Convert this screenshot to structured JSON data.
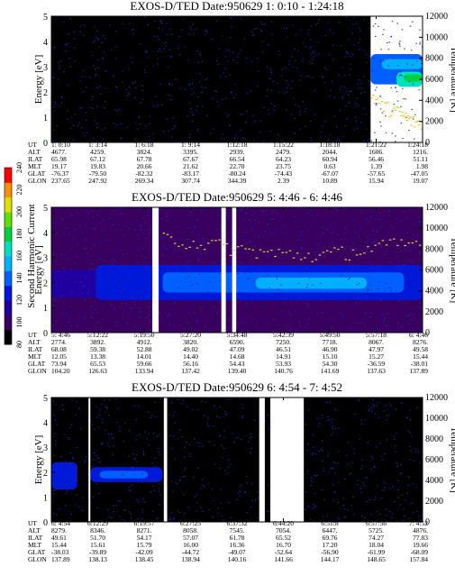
{
  "chart_data": [
    {
      "type": "heatmap",
      "title": "EXOS-D/TED   Date:950629   1: 0:10 - 1:24:18",
      "ylabel": "Energy [eV]",
      "y2label": "Temperature [K]",
      "ylim": [
        0,
        5
      ],
      "y2lim": [
        0,
        12000
      ],
      "yticks": [
        "0",
        "1",
        "2",
        "3",
        "4",
        "5"
      ],
      "y2ticks": [
        "0",
        "2000",
        "4000",
        "6000",
        "8000",
        "10000",
        "12000"
      ],
      "xlim": [
        0,
        1
      ],
      "gaps": [],
      "intensity_bands": [
        {
          "x": [
            0.0,
            0.86
          ],
          "e": [
            0.0,
            5.0
          ],
          "level": 90
        },
        {
          "x": [
            0.86,
            1.0
          ],
          "e": [
            2.3,
            3.5
          ],
          "level": 135
        },
        {
          "x": [
            0.89,
            1.0
          ],
          "e": [
            2.9,
            3.3
          ],
          "level": 150
        },
        {
          "x": [
            0.93,
            1.0
          ],
          "e": [
            2.2,
            2.8
          ],
          "level": 160
        },
        {
          "x": [
            0.95,
            1.0
          ],
          "e": [
            2.4,
            2.7
          ],
          "level": 185
        }
      ],
      "temperature_x": [
        0.86,
        0.9,
        0.94,
        0.97,
        1.0
      ],
      "temperature_k": [
        4500,
        3300,
        2700,
        2000,
        1800
      ],
      "ephemeris": {
        "labels": [
          "UT",
          "ALT",
          "ILAT",
          "MLT",
          "GLAT",
          "GLON"
        ],
        "columns": [
          [
            "1: 0:10",
            "4677.",
            "65.98",
            "19.17",
            "-76.37",
            "237.65"
          ],
          [
            "1: 3:14",
            "4259.",
            "67.12",
            "19.83",
            "-79.50",
            "247.92"
          ],
          [
            "1: 6:18",
            "3824.",
            "67.78",
            "20.66",
            "-82.32",
            "269.34"
          ],
          [
            "1: 9:14",
            "3395.",
            "67.67",
            "21.62",
            "-83.17",
            "307.74"
          ],
          [
            "1:12:18",
            "2939.",
            "66.54",
            "22.70",
            "-80.24",
            "344.39"
          ],
          [
            "1:15:22",
            "2479.",
            "64.23",
            "23.75",
            "-74.43",
            "2.39"
          ],
          [
            "1:18:18",
            "2044.",
            "60.94",
            "0.63",
            "-67.07",
            "10.89"
          ],
          [
            "1:21:22",
            "1606.",
            "56.46",
            "1.39",
            "-57.65",
            "15.94"
          ],
          [
            "1:24:18",
            "1216.",
            "51.11",
            "1.98",
            "-47.05",
            "19.07"
          ]
        ]
      }
    },
    {
      "type": "heatmap",
      "title": "EXOS-D/TED   Date:950629   5: 4:46 - 6: 4:46",
      "ylabel": "Energy [eV]",
      "y2label": "Temperature [K]",
      "ylim": [
        0,
        5
      ],
      "y2lim": [
        0,
        12000
      ],
      "yticks": [
        "0",
        "1",
        "2",
        "3",
        "4",
        "5"
      ],
      "y2ticks": [
        "0",
        "2000",
        "4000",
        "6000",
        "8000",
        "10000",
        "12000"
      ],
      "xlim": [
        0,
        1
      ],
      "gaps": [
        [
          0.272,
          0.289
        ],
        [
          0.458,
          0.47
        ],
        [
          0.487,
          0.498
        ]
      ],
      "intensity_bands": [
        {
          "x": [
            0.0,
            1.0
          ],
          "e": [
            0.0,
            5.0
          ],
          "level": 95
        },
        {
          "x": [
            0.0,
            0.2
          ],
          "e": [
            1.4,
            2.5
          ],
          "level": 118
        },
        {
          "x": [
            0.12,
            1.0
          ],
          "e": [
            1.3,
            2.7
          ],
          "level": 128
        },
        {
          "x": [
            0.3,
            0.95
          ],
          "e": [
            1.6,
            2.4
          ],
          "level": 140
        },
        {
          "x": [
            0.55,
            0.85
          ],
          "e": [
            1.75,
            2.2
          ],
          "level": 150
        }
      ],
      "temperature_x": [
        0.3,
        0.4,
        0.5,
        0.6,
        0.7,
        0.8,
        0.9,
        1.0
      ],
      "temperature_k": [
        9000,
        8600,
        8000,
        7600,
        7400,
        7700,
        8300,
        8700
      ],
      "ephemeris": {
        "labels": [
          "UT",
          "ALT",
          "ILAT",
          "MLT",
          "GLAT",
          "GLON"
        ],
        "columns": [
          [
            "5: 4:46",
            "2774.",
            "68.08",
            "12.05",
            "73.94",
            "104.20"
          ],
          [
            "5:12:22",
            "3892.",
            "59.38",
            "13.38",
            "65.53",
            "126.63"
          ],
          [
            "5:19:50",
            "4912.",
            "52.88",
            "14.01",
            "59.66",
            "133.94"
          ],
          [
            "5:27:20",
            "3820.",
            "49.02",
            "14.40",
            "56.16",
            "137.42"
          ],
          [
            "5:34:48",
            "6590.",
            "47.09",
            "14.68",
            "54.43",
            "139.40"
          ],
          [
            "5:42:39",
            "7250.",
            "46.51",
            "14.91",
            "53.93",
            "140.76"
          ],
          [
            "5:49:50",
            "7718.",
            "46.90",
            "15.10",
            "54.30",
            "141.69"
          ],
          [
            "5:57:18",
            "8067.",
            "47.97",
            "15.27",
            "-36.59",
            "137.63"
          ],
          [
            "6: 4:46",
            "8276.",
            "49.58",
            "15.44",
            "-38.01",
            "137.89"
          ]
        ]
      }
    },
    {
      "type": "heatmap",
      "title": "EXOS-D/TED   Date:950629   6: 4:54 - 7: 4:52",
      "ylabel": "Energy [eV]",
      "y2label": "Temperature [K]",
      "ylim": [
        0,
        5
      ],
      "y2lim": [
        0,
        12000
      ],
      "yticks": [
        "0",
        "1",
        "2",
        "3",
        "4",
        "5"
      ],
      "y2ticks": [
        "0",
        "2000",
        "4000",
        "6000",
        "8000",
        "10000",
        "12000"
      ],
      "xlim": [
        0,
        1
      ],
      "gaps": [
        [
          0.1,
          0.105
        ],
        [
          0.303,
          0.312
        ],
        [
          0.56,
          0.575
        ],
        [
          0.59,
          0.68
        ]
      ],
      "intensity_bands": [
        {
          "x": [
            0.0,
            1.0
          ],
          "e": [
            0.0,
            5.0
          ],
          "level": 90
        },
        {
          "x": [
            0.0,
            0.07
          ],
          "e": [
            1.3,
            2.4
          ],
          "level": 120
        },
        {
          "x": [
            0.105,
            0.3
          ],
          "e": [
            1.6,
            2.2
          ],
          "level": 128
        },
        {
          "x": [
            0.13,
            0.26
          ],
          "e": [
            1.75,
            2.05
          ],
          "level": 138
        }
      ],
      "temperature_x": [],
      "temperature_k": [],
      "ephemeris": {
        "labels": [
          "UT",
          "ALT",
          "ILAT",
          "MLT",
          "GLAT",
          "GLON"
        ],
        "columns": [
          [
            "6: 4:54",
            "8279.",
            "49.61",
            "15.44",
            "-38.03",
            "137.89"
          ],
          [
            "6:12:29",
            "8346.",
            "51.70",
            "15.61",
            "-39.89",
            "138.13"
          ],
          [
            "6:19:57",
            "8271.",
            "54.17",
            "15.79",
            "-42.09",
            "138.45"
          ],
          [
            "6:27:25",
            "8058.",
            "57.07",
            "16.00",
            "-44.72",
            "138.94"
          ],
          [
            "6:37:32",
            "7545.",
            "61.78",
            "16.36",
            "-49.07",
            "140.16"
          ],
          [
            "6:44:20",
            "7054.",
            "65.52",
            "16.70",
            "-52.64",
            "141.66"
          ],
          [
            "6:51:8",
            "6447.",
            "69.76",
            "17.20",
            "-56.90",
            "144.17"
          ],
          [
            "6:57:56",
            "5725.",
            "74.27",
            "18.04",
            "-61.99",
            "148.65"
          ],
          [
            "7: 4:52",
            "4876.",
            "77.83",
            "19.66",
            "-68.09",
            "157.84"
          ]
        ]
      }
    }
  ],
  "colorbar": {
    "label": "Second Harmonic Current",
    "range": [
      80,
      240
    ],
    "ticks": [
      "80",
      "100",
      "120",
      "140",
      "160",
      "180",
      "200",
      "220",
      "240"
    ],
    "colors": [
      "#000000",
      "#3a0060",
      "#2000a0",
      "#0018d8",
      "#0060ff",
      "#00b0ff",
      "#00e0c0",
      "#00d040",
      "#60e000",
      "#e0e000",
      "#ff9000",
      "#ff0000"
    ]
  }
}
